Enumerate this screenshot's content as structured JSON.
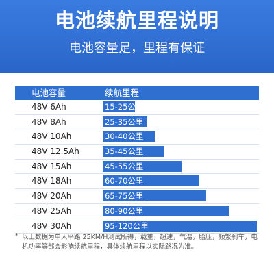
{
  "banner": {
    "title": "电池续航里程说明",
    "subtitle": "电池容量足，里程有保证"
  },
  "table": {
    "headers": {
      "capacity": "电池容量",
      "range": "续航里程"
    },
    "rows": [
      {
        "capacity": "48V 6Ah",
        "range": "15-25公里",
        "fill": 0.21
      },
      {
        "capacity": "48V 8Ah",
        "range": "25-35公里",
        "fill": 0.29
      },
      {
        "capacity": "48V 10Ah",
        "range": "30-40公里",
        "fill": 0.34
      },
      {
        "capacity": "48V 12.5Ah",
        "range": "35-45公里",
        "fill": 0.4
      },
      {
        "capacity": "48V 15Ah",
        "range": "45-55公里",
        "fill": 0.51
      },
      {
        "capacity": "48V 18Ah",
        "range": "60-70公里",
        "fill": 0.62
      },
      {
        "capacity": "48V 20Ah",
        "range": "65-75公里",
        "fill": 0.67
      },
      {
        "capacity": "48V 25Ah",
        "range": "80-90公里",
        "fill": 0.82
      },
      {
        "capacity": "48V 30Ah",
        "range": "95-120公里",
        "fill": 1.0
      }
    ]
  },
  "note": {
    "star": "*",
    "text": "以上数据为单人平路 25KM/H测试所得，载重，超速，气温，胎压，频繁刹车，电机功率等部会影响续航里程，具体续航里程以实际路况为准。"
  },
  "colors": {
    "accent": "#2f6fd0",
    "divider": "#d6e2f3"
  }
}
